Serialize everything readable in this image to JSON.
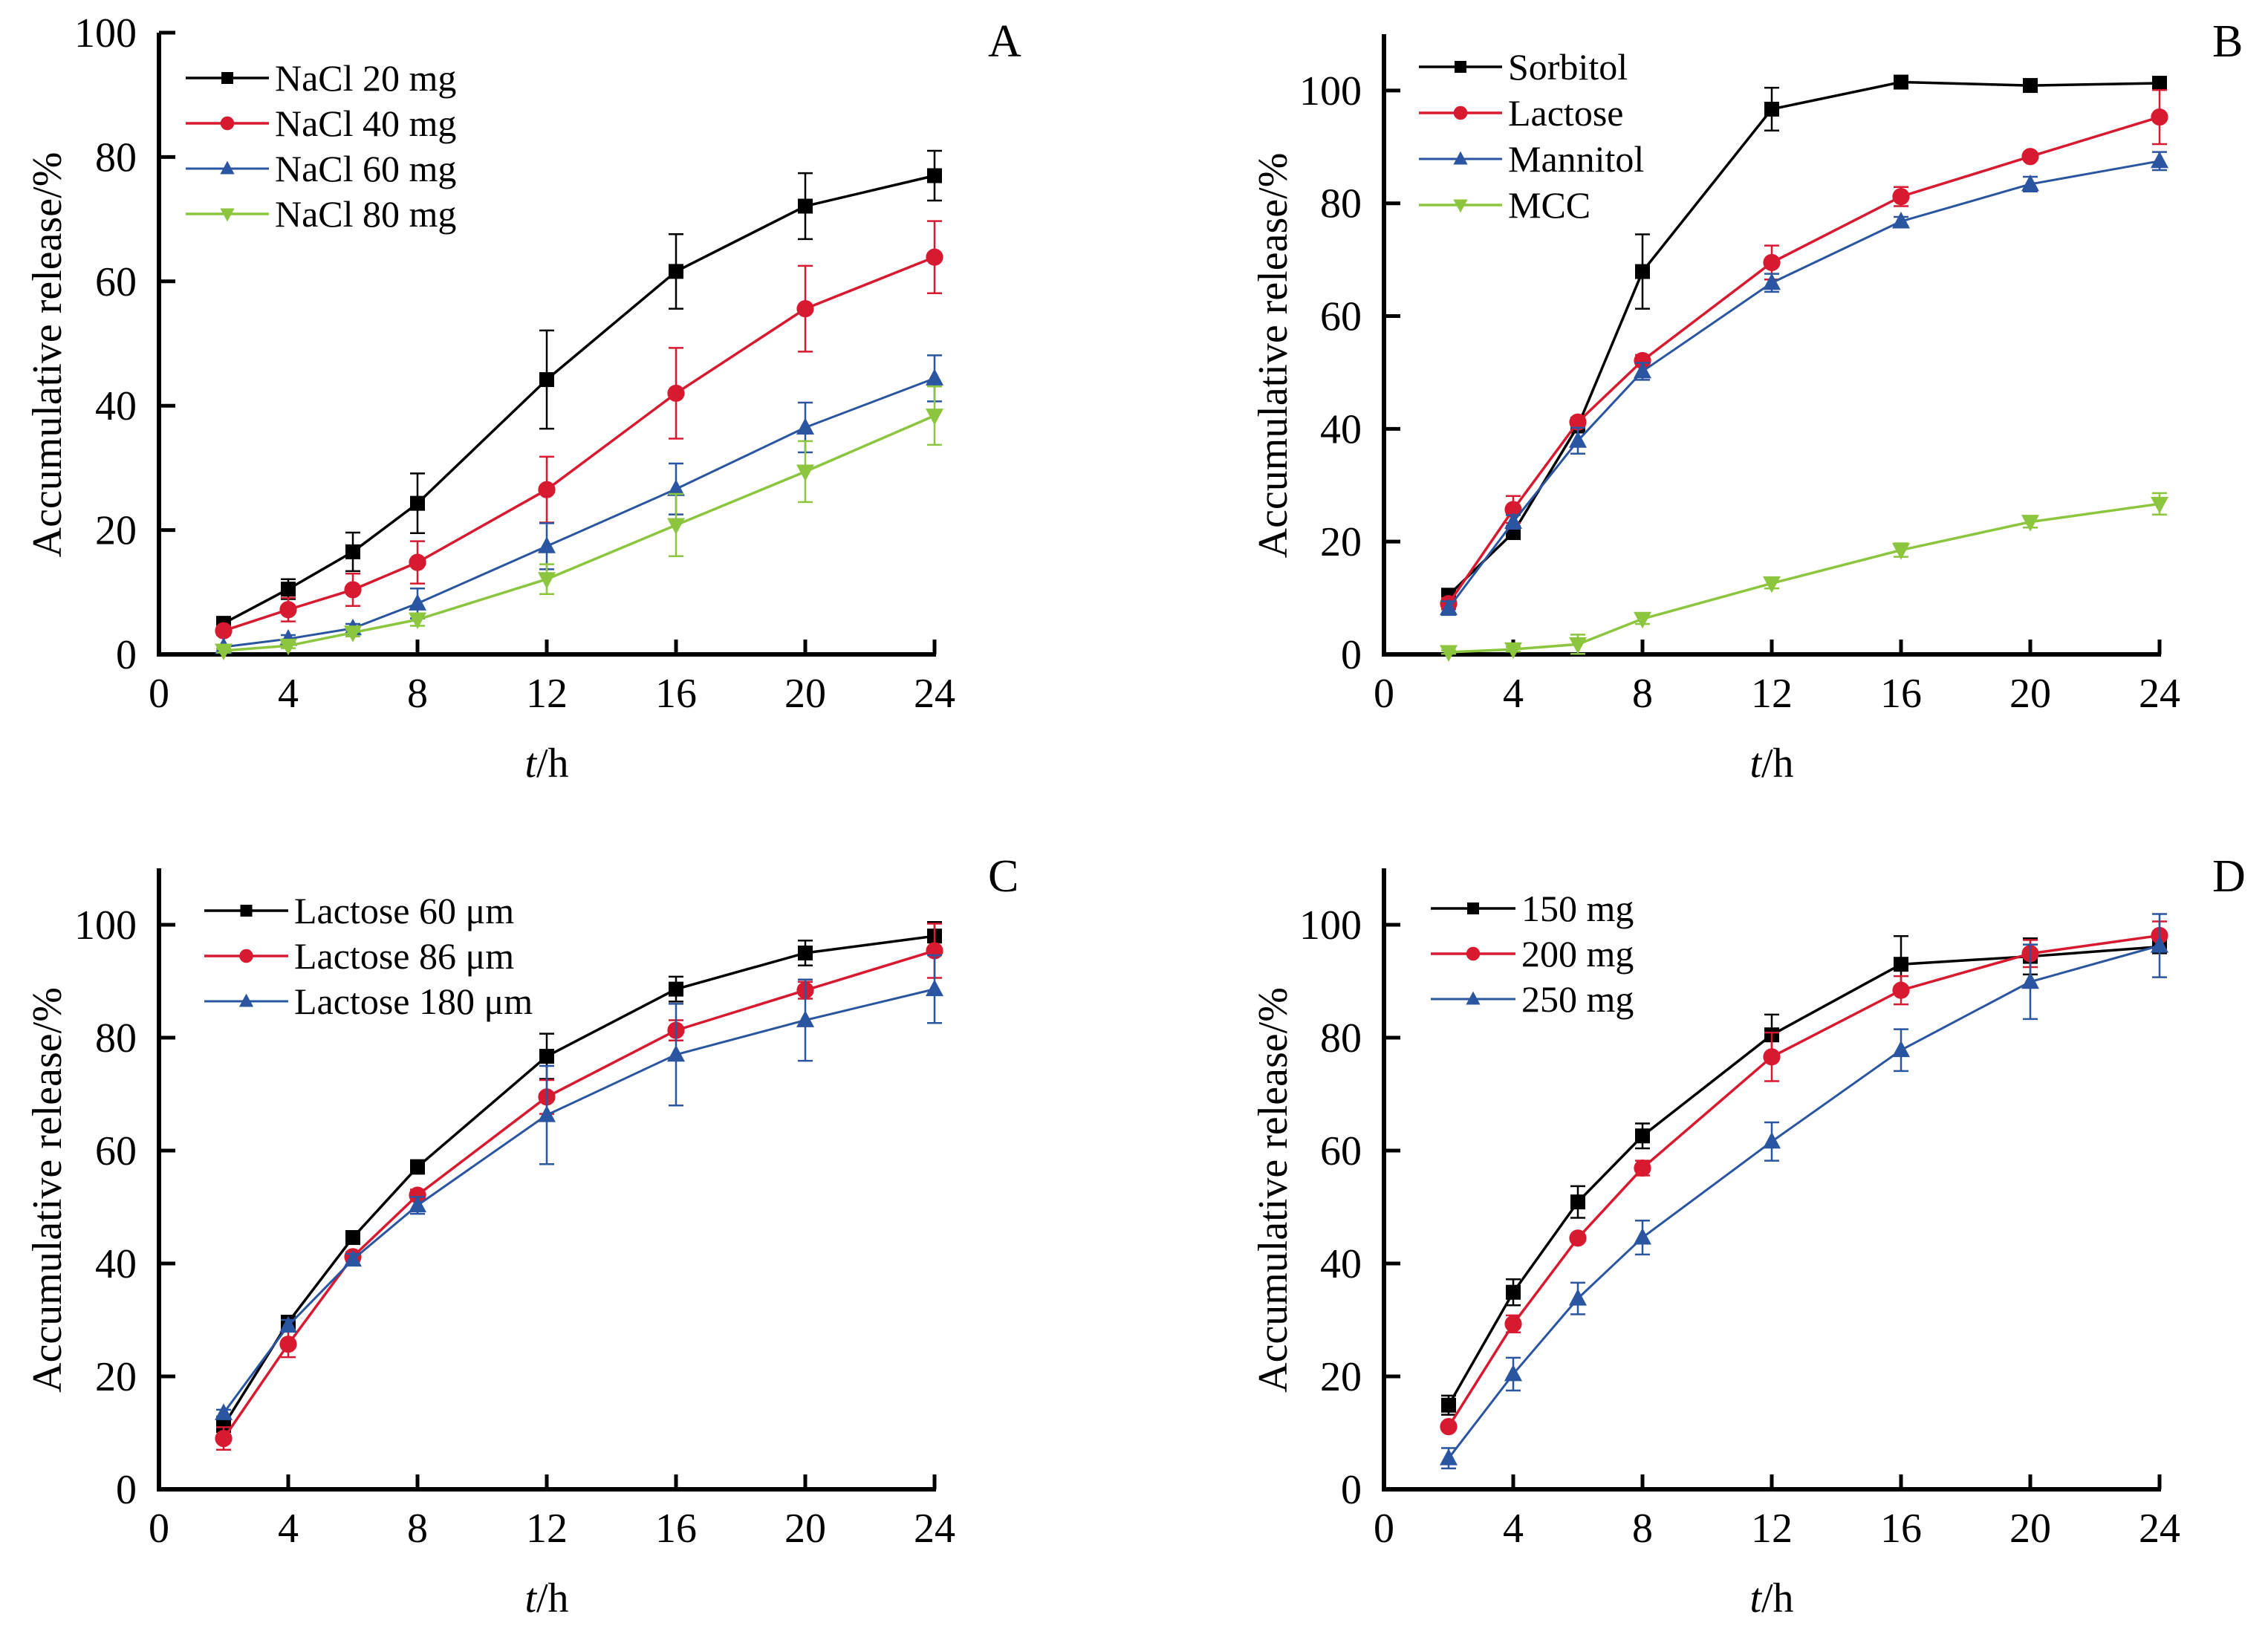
{
  "figure": {
    "panels_count": 4
  },
  "chart_data": [
    {
      "panel": "A",
      "type": "line",
      "title": "",
      "xlabel_italic": "t",
      "xlabel_rest": "/h",
      "ylabel": "Accumulative release/%",
      "xlim": [
        0,
        24
      ],
      "ylim": [
        0,
        100
      ],
      "xticks": [
        0,
        4,
        8,
        12,
        16,
        20,
        24
      ],
      "yticks": [
        0,
        20,
        40,
        60,
        80,
        100
      ],
      "legend_position": "top-left",
      "x": [
        2,
        4,
        6,
        8,
        12,
        16,
        20,
        24
      ],
      "series": [
        {
          "name": "NaCl 20 mg",
          "color": "#000000",
          "marker": "square",
          "values": [
            5.0,
            10.5,
            16.5,
            24.3,
            44.2,
            61.6,
            72.1,
            77.0
          ],
          "errors": [
            0.6,
            1.6,
            3.1,
            4.8,
            7.9,
            6.0,
            5.3,
            4.0
          ]
        },
        {
          "name": "NaCl 40 mg",
          "color": "#d71a30",
          "marker": "circle",
          "values": [
            3.8,
            7.2,
            10.4,
            14.8,
            26.5,
            42.0,
            55.6,
            63.9
          ],
          "errors": [
            0.7,
            1.9,
            2.6,
            3.4,
            5.3,
            7.3,
            6.9,
            5.8
          ]
        },
        {
          "name": "NaCl 60 mg",
          "color": "#2a55a0",
          "marker": "triangle-up",
          "values": [
            1.2,
            2.5,
            4.2,
            8.2,
            17.4,
            26.6,
            36.5,
            44.4
          ],
          "errors": [
            0.3,
            0.6,
            0.7,
            2.4,
            3.7,
            4.1,
            4.0,
            3.7
          ]
        },
        {
          "name": "NaCl 80 mg",
          "color": "#8cc63e",
          "marker": "triangle-down",
          "values": [
            0.6,
            1.4,
            3.5,
            5.6,
            12.1,
            20.8,
            29.4,
            38.4
          ],
          "errors": [
            0.3,
            0.4,
            0.6,
            1.0,
            2.4,
            5.0,
            4.9,
            4.7
          ]
        }
      ]
    },
    {
      "panel": "B",
      "type": "line",
      "title": "",
      "xlabel_italic": "t",
      "xlabel_rest": "/h",
      "ylabel": "Accumulative release/%",
      "xlim": [
        0,
        24
      ],
      "ylim": [
        0,
        110
      ],
      "xticks": [
        0,
        4,
        8,
        12,
        16,
        20,
        24
      ],
      "yticks": [
        0,
        20,
        40,
        60,
        80,
        100
      ],
      "legend_position": "top-left",
      "x": [
        2,
        4,
        6,
        8,
        12,
        16,
        20,
        24
      ],
      "series": [
        {
          "name": "Sorbitol",
          "color": "#000000",
          "marker": "square",
          "values": [
            10.5,
            21.6,
            40.5,
            67.9,
            96.7,
            101.5,
            100.9,
            101.3
          ],
          "errors": [
            0.8,
            1.0,
            1.0,
            6.6,
            3.8,
            1.0,
            1.0,
            0.6
          ]
        },
        {
          "name": "Lactose",
          "color": "#d71a30",
          "marker": "circle",
          "values": [
            9.0,
            25.7,
            41.2,
            52.1,
            69.5,
            81.2,
            88.3,
            95.3
          ],
          "errors": [
            1.0,
            2.4,
            0.8,
            1.0,
            3.0,
            1.7,
            0.6,
            4.8
          ]
        },
        {
          "name": "Mannitol",
          "color": "#2a55a0",
          "marker": "triangle-up",
          "values": [
            8.2,
            23.5,
            37.9,
            50.2,
            65.9,
            76.8,
            83.4,
            87.5
          ],
          "errors": [
            1.2,
            1.2,
            2.3,
            1.5,
            1.6,
            0.8,
            1.3,
            1.6
          ]
        },
        {
          "name": "MCC",
          "color": "#8cc63e",
          "marker": "triangle-down",
          "values": [
            0.4,
            0.9,
            1.8,
            6.3,
            12.6,
            18.5,
            23.5,
            26.7
          ],
          "errors": [
            0.3,
            0.4,
            1.7,
            0.9,
            0.9,
            1.2,
            1.0,
            1.9
          ]
        }
      ]
    },
    {
      "panel": "C",
      "type": "line",
      "title": "",
      "xlabel_italic": "t",
      "xlabel_rest": "/h",
      "ylabel": "Accumulative release/%",
      "xlim": [
        0,
        24
      ],
      "ylim": [
        0,
        110
      ],
      "xticks": [
        0,
        4,
        8,
        12,
        16,
        20,
        24
      ],
      "yticks": [
        0,
        20,
        40,
        60,
        80,
        100
      ],
      "legend_position": "top-left",
      "x": [
        2,
        4,
        6,
        8,
        12,
        16,
        20,
        24
      ],
      "series": [
        {
          "name": "Lactose 60 μm",
          "color": "#000000",
          "marker": "square",
          "values": [
            11.3,
            29.6,
            44.6,
            57.1,
            76.7,
            88.6,
            95.0,
            98.0
          ],
          "errors": [
            0.8,
            1.0,
            0.8,
            1.2,
            4.0,
            2.2,
            2.2,
            2.5
          ]
        },
        {
          "name": "Lactose 86 μm",
          "color": "#d71a30",
          "marker": "circle",
          "values": [
            9.0,
            25.7,
            41.2,
            52.1,
            69.5,
            81.3,
            88.4,
            95.4
          ],
          "errors": [
            2.0,
            2.3,
            0.8,
            1.0,
            3.0,
            1.8,
            1.5,
            4.8
          ]
        },
        {
          "name": "Lactose 180 μm",
          "color": "#2a55a0",
          "marker": "triangle-up",
          "values": [
            13.5,
            29.0,
            40.7,
            50.3,
            66.3,
            77.0,
            83.1,
            88.6
          ],
          "errors": [
            0.6,
            1.0,
            1.0,
            1.5,
            8.7,
            9.0,
            7.2,
            6.0
          ]
        }
      ]
    },
    {
      "panel": "D",
      "type": "line",
      "title": "",
      "xlabel_italic": "t",
      "xlabel_rest": "/h",
      "ylabel": "Accumulative release/%",
      "xlim": [
        0,
        24
      ],
      "ylim": [
        0,
        110
      ],
      "xticks": [
        0,
        4,
        8,
        12,
        16,
        20,
        24
      ],
      "yticks": [
        0,
        20,
        40,
        60,
        80,
        100
      ],
      "legend_position": "top-left",
      "x": [
        2,
        4,
        6,
        8,
        12,
        16,
        20,
        24
      ],
      "series": [
        {
          "name": "150 mg",
          "color": "#000000",
          "marker": "square",
          "values": [
            14.9,
            34.9,
            50.9,
            62.6,
            80.5,
            93.0,
            94.4,
            96.1
          ],
          "errors": [
            1.7,
            2.3,
            2.8,
            2.2,
            3.6,
            5.0,
            3.2,
            1.0
          ]
        },
        {
          "name": "200 mg",
          "color": "#d71a30",
          "marker": "circle",
          "values": [
            11.1,
            29.3,
            44.5,
            56.9,
            76.6,
            88.4,
            94.9,
            98.1
          ],
          "errors": [
            0.6,
            1.5,
            0.6,
            1.3,
            4.3,
            2.5,
            2.4,
            2.5
          ]
        },
        {
          "name": "250 mg",
          "color": "#2a55a0",
          "marker": "triangle-up",
          "values": [
            5.5,
            20.4,
            33.8,
            44.6,
            61.6,
            77.8,
            89.9,
            96.3
          ],
          "errors": [
            1.8,
            2.9,
            2.8,
            3.0,
            3.4,
            3.7,
            6.6,
            5.6
          ]
        }
      ]
    }
  ]
}
